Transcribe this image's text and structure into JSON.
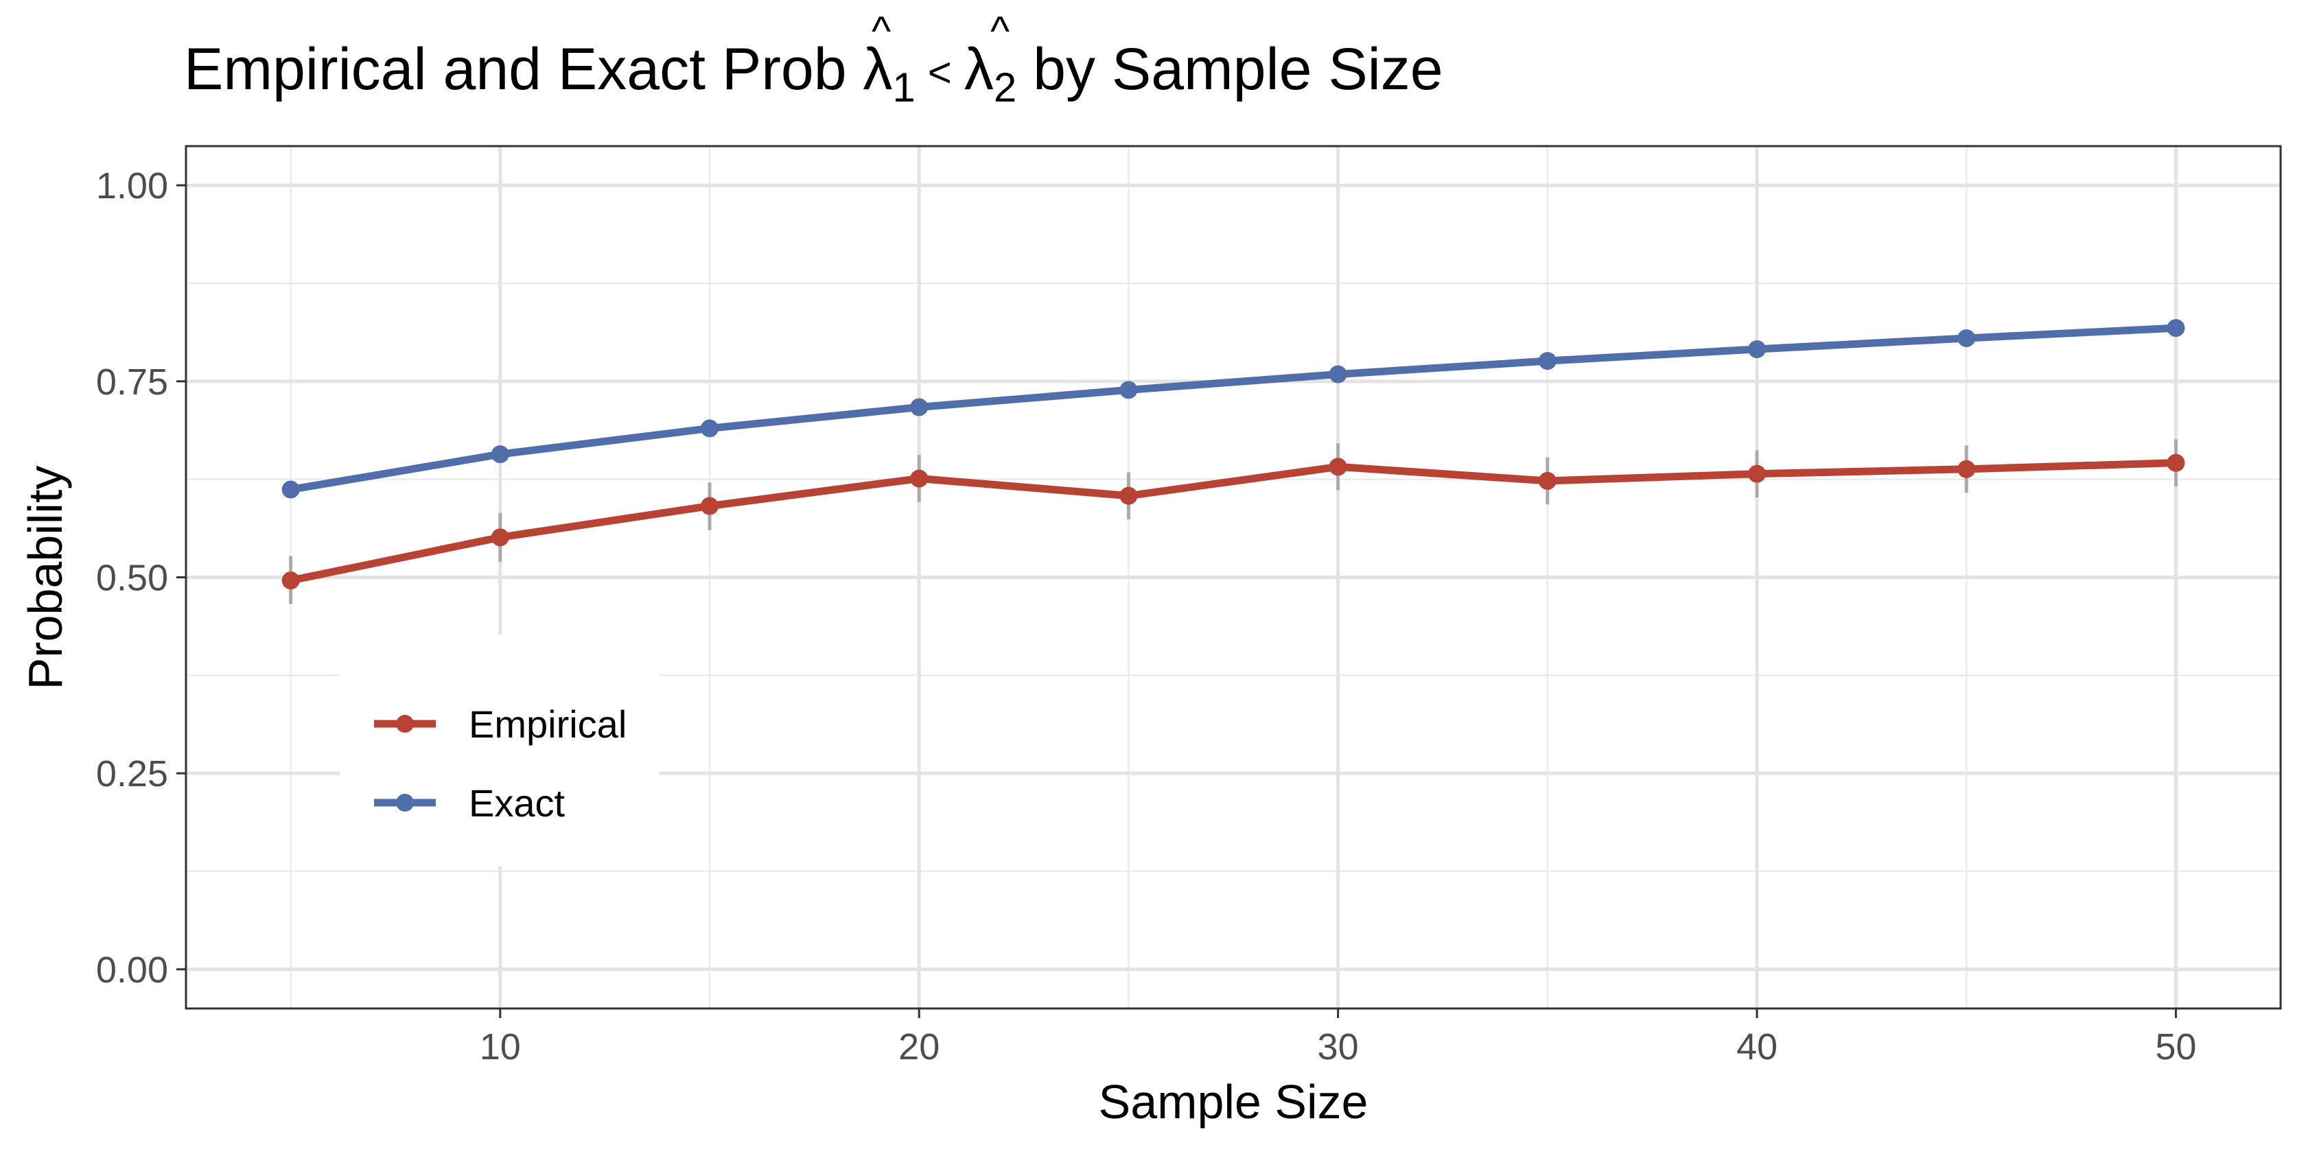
{
  "chart_data": {
    "type": "line",
    "title": {
      "prefix": "Empirical and Exact Prob ",
      "var1_base": "λ",
      "var1_hat": "^",
      "var1_sub": "1",
      "operator": "<",
      "var2_base": "λ",
      "var2_hat": "^",
      "var2_sub": "2",
      "suffix": " by Sample Size"
    },
    "xlabel": "Sample Size",
    "ylabel": "Probability",
    "xlim": [
      2.5,
      52.5
    ],
    "ylim": [
      -0.05,
      1.05
    ],
    "x_ticks": [
      10,
      20,
      30,
      40,
      50
    ],
    "x_tick_labels": [
      "10",
      "20",
      "30",
      "40",
      "50"
    ],
    "y_ticks": [
      0,
      0.25,
      0.5,
      0.75,
      1
    ],
    "y_tick_labels": [
      "0.00",
      "0.25",
      "0.50",
      "0.75",
      "1.00"
    ],
    "x_minor_gridlines": [
      5,
      15,
      25,
      35,
      45
    ],
    "y_minor_gridlines": [
      0.125,
      0.375,
      0.625,
      0.875
    ],
    "grid": true,
    "legend_position": "bottom-left",
    "x": [
      5,
      10,
      15,
      20,
      25,
      30,
      35,
      40,
      45,
      50
    ],
    "series": [
      {
        "name": "Empirical",
        "color": "#B84234",
        "values": [
          0.496,
          0.551,
          0.591,
          0.626,
          0.604,
          0.641,
          0.623,
          0.632,
          0.638,
          0.646
        ],
        "error_low": [
          0.466,
          0.52,
          0.56,
          0.596,
          0.574,
          0.611,
          0.593,
          0.602,
          0.608,
          0.616
        ],
        "error_high": [
          0.527,
          0.582,
          0.621,
          0.656,
          0.634,
          0.671,
          0.653,
          0.662,
          0.668,
          0.676
        ]
      },
      {
        "name": "Exact",
        "color": "#4F6EAA",
        "values": [
          0.612,
          0.657,
          0.69,
          0.717,
          0.739,
          0.759,
          0.776,
          0.791,
          0.805,
          0.818
        ]
      }
    ],
    "error_bar_color": "#AAAAAA"
  }
}
